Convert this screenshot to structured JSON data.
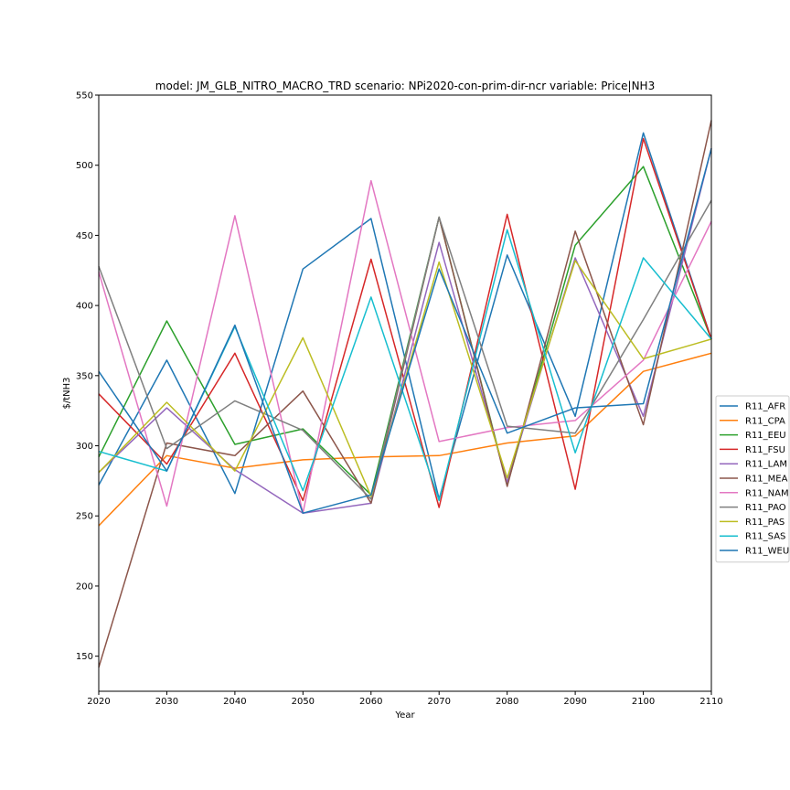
{
  "chart_data": {
    "type": "line",
    "title": "model: JM_GLB_NITRO_MACRO_TRD scenario: NPi2020-con-prim-dir-ncr variable: Price|NH3",
    "xlabel": "Year",
    "ylabel": "$/tNH3",
    "xlim": [
      2020,
      2110
    ],
    "ylim": [
      125,
      550
    ],
    "x_ticks": [
      2020,
      2030,
      2040,
      2050,
      2060,
      2070,
      2080,
      2090,
      2100,
      2110
    ],
    "y_ticks": [
      150,
      200,
      250,
      300,
      350,
      400,
      450,
      500,
      550
    ],
    "grid": false,
    "legend_position": "right, outside plot",
    "x": [
      2020,
      2030,
      2040,
      2050,
      2060,
      2070,
      2080,
      2090,
      2100,
      2110
    ],
    "series": [
      {
        "name": "R11_AFR",
        "color": "#1f77b4",
        "values": [
          272,
          361,
          266,
          426,
          462,
          262,
          436,
          321,
          523,
          376
        ]
      },
      {
        "name": "R11_CPA",
        "color": "#ff7f0e",
        "values": [
          243,
          293,
          284,
          290,
          292,
          293,
          302,
          307,
          353,
          366
        ]
      },
      {
        "name": "R11_EEU",
        "color": "#2ca02c",
        "values": [
          292,
          389,
          301,
          312,
          265,
          463,
          272,
          443,
          499,
          376
        ]
      },
      {
        "name": "R11_FSU",
        "color": "#d62728",
        "values": [
          337,
          287,
          366,
          261,
          433,
          256,
          465,
          269,
          519,
          376
        ]
      },
      {
        "name": "R11_LAM",
        "color": "#9467bd",
        "values": [
          281,
          327,
          283,
          252,
          259,
          445,
          274,
          434,
          321,
          512
        ]
      },
      {
        "name": "R11_MEA",
        "color": "#8c564b",
        "values": [
          142,
          302,
          293,
          339,
          259,
          463,
          271,
          453,
          315,
          532
        ]
      },
      {
        "name": "R11_NAM",
        "color": "#e377c2",
        "values": [
          424,
          257,
          464,
          252,
          489,
          303,
          313,
          318,
          361,
          460
        ]
      },
      {
        "name": "R11_PAO",
        "color": "#7f7f7f",
        "values": [
          428,
          298,
          332,
          311,
          262,
          463,
          314,
          309,
          390,
          475
        ]
      },
      {
        "name": "R11_PAS",
        "color": "#bcbd22",
        "values": [
          281,
          331,
          282,
          377,
          264,
          431,
          277,
          432,
          362,
          376
        ]
      },
      {
        "name": "R11_SAS",
        "color": "#17becf",
        "values": [
          296,
          282,
          385,
          268,
          406,
          261,
          454,
          295,
          434,
          376
        ]
      },
      {
        "name": "R11_WEU",
        "color": "#1f77b4",
        "values": [
          353,
          282,
          386,
          252,
          265,
          426,
          309,
          327,
          330,
          512
        ]
      }
    ]
  }
}
